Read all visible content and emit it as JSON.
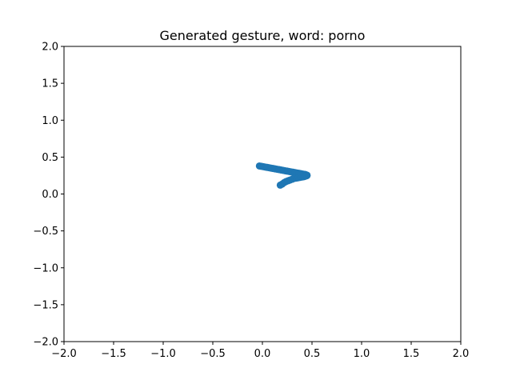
{
  "chart_data": {
    "type": "scatter",
    "title": "Generated gesture, word: porno",
    "xlabel": "",
    "ylabel": "",
    "xlim": [
      -2.0,
      2.0
    ],
    "ylim": [
      -2.0,
      2.0
    ],
    "x_ticks": [
      "−2.0",
      "−1.5",
      "−1.0",
      "−0.5",
      "0.0",
      "0.5",
      "1.0",
      "1.5",
      "2.0"
    ],
    "y_ticks": [
      "−2.0",
      "−1.5",
      "−1.0",
      "−0.5",
      "0.0",
      "0.5",
      "1.0",
      "1.5",
      "2.0"
    ],
    "grid": false,
    "legend": "none",
    "color": "#1f77b4",
    "series": [
      {
        "x": [
          -0.03,
          -0.01,
          0.01,
          0.03,
          0.05,
          0.07,
          0.09,
          0.11,
          0.13,
          0.15,
          0.17,
          0.19,
          0.21,
          0.23,
          0.25,
          0.27,
          0.29,
          0.31,
          0.33,
          0.35,
          0.37,
          0.39,
          0.41,
          0.43,
          0.44,
          0.45,
          0.45,
          0.44,
          0.43,
          0.42,
          0.4,
          0.38,
          0.36,
          0.34,
          0.32,
          0.3,
          0.28,
          0.26,
          0.24,
          0.22,
          0.2,
          0.18
        ],
        "y": [
          0.38,
          0.375,
          0.37,
          0.365,
          0.36,
          0.355,
          0.35,
          0.345,
          0.34,
          0.335,
          0.33,
          0.325,
          0.32,
          0.315,
          0.31,
          0.305,
          0.3,
          0.295,
          0.29,
          0.285,
          0.28,
          0.275,
          0.27,
          0.265,
          0.26,
          0.255,
          0.25,
          0.245,
          0.24,
          0.235,
          0.23,
          0.225,
          0.22,
          0.215,
          0.21,
          0.2,
          0.19,
          0.18,
          0.17,
          0.155,
          0.135,
          0.12
        ]
      }
    ]
  }
}
